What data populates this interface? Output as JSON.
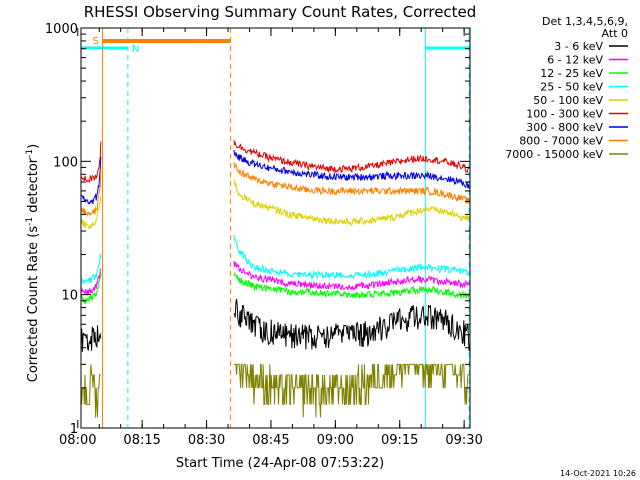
{
  "chart_data": {
    "type": "line",
    "title": "RHESSI Observing Summary Count Rates, Corrected",
    "xlabel": "Start Time (24-Apr-08 07:53:22)",
    "ylabel_main": "Corrected Count Rate (s",
    "ylabel_sup1": "-1",
    "ylabel_mid": " detector",
    "ylabel_sup2": "-1",
    "ylabel_end": ")",
    "yscale": "log",
    "ylim": [
      1,
      1000
    ],
    "xlim_minutes": [
      7.38,
      98.0
    ],
    "x_ticks": [
      {
        "label": "08:00",
        "value": 6.63
      },
      {
        "label": "08:15",
        "value": 21.63
      },
      {
        "label": "08:30",
        "value": 36.63
      },
      {
        "label": "08:45",
        "value": 51.63
      },
      {
        "label": "09:00",
        "value": 66.63
      },
      {
        "label": "09:15",
        "value": 81.63
      },
      {
        "label": "09:30",
        "value": 96.63
      }
    ],
    "y_ticks": [
      {
        "label": "1",
        "value": 1
      },
      {
        "label": "10",
        "value": 10
      },
      {
        "label": "100",
        "value": 100
      },
      {
        "label": "1000",
        "value": 1000
      }
    ],
    "legend": {
      "position": "right",
      "header": [
        "Det 1,3,4,5,6,9,",
        "Att 0"
      ],
      "entries": [
        {
          "label": "3 - 6 keV",
          "color": "#000000"
        },
        {
          "label": "6 - 12 keV",
          "color": "#ff00ff"
        },
        {
          "label": "12 - 25 keV",
          "color": "#00ff00"
        },
        {
          "label": "25 - 50 keV",
          "color": "#00ffff"
        },
        {
          "label": "50 - 100 keV",
          "color": "#e0d000"
        },
        {
          "label": "100 - 300 keV",
          "color": "#e00000"
        },
        {
          "label": "300 - 800 keV",
          "color": "#0000e0"
        },
        {
          "label": "800 - 7000 keV",
          "color": "#ff8000"
        },
        {
          "label": "7000 - 15000 keV",
          "color": "#808000"
        }
      ]
    },
    "flag_labels": {
      "saa": "S",
      "night": "N"
    },
    "intervals": {
      "saa": [
        12.4,
        42.2
      ],
      "night": [
        [
          7.38,
          18.3
        ],
        [
          87.6,
          97.8
        ]
      ]
    },
    "series": [
      {
        "name": "3 - 6 keV",
        "color": "#000000",
        "segments": [
          {
            "x": [
              7.4,
              8,
              9,
              10,
              11,
              12
            ],
            "y": [
              4.7,
              4.5,
              4.6,
              4.8,
              4.6,
              6
            ]
          },
          {
            "x": [
              43,
              45,
              48,
              52,
              56,
              60,
              65,
              70,
              75,
              80,
              85,
              88,
              92,
              96,
              97.8
            ],
            "y": [
              8,
              7,
              5.8,
              5.3,
              5,
              4.9,
              5,
              5,
              5.3,
              6.2,
              7,
              7,
              6.5,
              5.5,
              4.8
            ]
          }
        ]
      },
      {
        "name": "6 - 12 keV",
        "color": "#ff00ff",
        "segments": [
          {
            "x": [
              7.4,
              8,
              9,
              10,
              11,
              12
            ],
            "y": [
              11,
              10.5,
              10.5,
              10.8,
              11.5,
              15
            ]
          },
          {
            "x": [
              43,
              45,
              48,
              52,
              56,
              60,
              65,
              70,
              75,
              80,
              85,
              88,
              92,
              96,
              97.8
            ],
            "y": [
              17,
              15,
              13.5,
              12.8,
              12,
              11.8,
              11.5,
              11.5,
              11.8,
              12.5,
              13,
              13,
              12.5,
              12,
              12
            ]
          }
        ]
      },
      {
        "name": "12 - 25 keV",
        "color": "#00ff00",
        "segments": [
          {
            "x": [
              7.4,
              8,
              9,
              10,
              11,
              12
            ],
            "y": [
              9.5,
              9,
              9.2,
              9.5,
              10,
              14
            ]
          },
          {
            "x": [
              43,
              45,
              48,
              52,
              56,
              60,
              65,
              70,
              75,
              80,
              85,
              88,
              92,
              96,
              97.8
            ],
            "y": [
              14,
              12.5,
              11.5,
              11,
              10.5,
              10.5,
              10.2,
              10,
              10,
              10.3,
              10.8,
              11,
              10.5,
              10,
              9.8
            ]
          }
        ]
      },
      {
        "name": "25 - 50 keV",
        "color": "#00ffff",
        "segments": [
          {
            "x": [
              7.4,
              8,
              9,
              10,
              11,
              12
            ],
            "y": [
              13,
              12.5,
              12.5,
              13,
              14,
              20
            ]
          },
          {
            "x": [
              43,
              44,
              46,
              48,
              52,
              56,
              60,
              65,
              70,
              75,
              80,
              85,
              88,
              92,
              96,
              97.8
            ],
            "y": [
              28,
              22,
              18,
              16,
              15,
              14.5,
              14.2,
              14,
              14,
              14.2,
              15,
              16,
              16,
              15.5,
              15,
              15
            ]
          }
        ]
      },
      {
        "name": "50 - 100 keV",
        "color": "#e0d000",
        "segments": [
          {
            "x": [
              7.4,
              8,
              9,
              10,
              11,
              12
            ],
            "y": [
              36,
              34,
              33,
              33,
              35,
              55
            ]
          },
          {
            "x": [
              43,
              44,
              46,
              48,
              52,
              56,
              60,
              65,
              70,
              75,
              80,
              85,
              88,
              92,
              96,
              97.8
            ],
            "y": [
              72,
              58,
              52,
              48,
              44,
              40,
              38,
              36,
              35,
              36,
              38,
              42,
              44,
              42,
              38,
              37
            ]
          }
        ]
      },
      {
        "name": "100 - 300 keV",
        "color": "#e00000",
        "segments": [
          {
            "x": [
              7.4,
              8,
              9,
              10,
              11,
              11.8,
              12
            ],
            "y": [
              78,
              75,
              73,
              74,
              78,
              100,
              140
            ]
          },
          {
            "x": [
              43,
              44,
              46,
              48,
              52,
              56,
              60,
              65,
              70,
              75,
              80,
              85,
              88,
              92,
              96,
              97.8
            ],
            "y": [
              140,
              130,
              122,
              115,
              105,
              98,
              93,
              88,
              88,
              92,
              98,
              105,
              105,
              100,
              92,
              85
            ]
          }
        ]
      },
      {
        "name": "300 - 800 keV",
        "color": "#0000e0",
        "segments": [
          {
            "x": [
              7.4,
              8,
              9,
              10,
              11,
              11.8,
              12
            ],
            "y": [
              55,
              52,
              50,
              50,
              54,
              75,
              110
            ]
          },
          {
            "x": [
              43,
              44,
              46,
              48,
              52,
              56,
              60,
              65,
              70,
              75,
              80,
              85,
              88,
              92,
              96,
              97.8
            ],
            "y": [
              118,
              108,
              100,
              95,
              88,
              84,
              80,
              77,
              76,
              77,
              78,
              78,
              78,
              75,
              70,
              65
            ]
          }
        ]
      },
      {
        "name": "800 - 7000 keV",
        "color": "#ff8000",
        "segments": [
          {
            "x": [
              7.4,
              8,
              9,
              10,
              11,
              11.8,
              12
            ],
            "y": [
              44,
              42,
              41,
              41,
              43,
              60,
              90
            ]
          },
          {
            "x": [
              43,
              44,
              46,
              48,
              52,
              56,
              60,
              65,
              70,
              75,
              80,
              85,
              88,
              92,
              96,
              97.8
            ],
            "y": [
              95,
              85,
              78,
              73,
              68,
              64,
              61,
              60,
              60,
              60,
              60,
              60,
              60,
              57,
              53,
              50
            ]
          }
        ]
      },
      {
        "name": "7000 - 15000 keV",
        "color": "#808000",
        "segments": [
          {
            "x": [
              7.4,
              8,
              9,
              10,
              11,
              12
            ],
            "y": [
              1.6,
              2.1,
              1.5,
              2.4,
              1.6,
              2.2
            ]
          },
          {
            "x": [
              43,
              45,
              48,
              52,
              56,
              60,
              65,
              70,
              75,
              80,
              85,
              88,
              92,
              96,
              97.8
            ],
            "y": [
              3.6,
              2.8,
              2.3,
              2,
              1.8,
              1.9,
              1.8,
              1.9,
              2.2,
              2.6,
              3,
              3,
              2.8,
              2.3,
              2
            ]
          }
        ]
      }
    ]
  },
  "footer": {
    "timestamp": "14-Oct-2021 10:26"
  }
}
